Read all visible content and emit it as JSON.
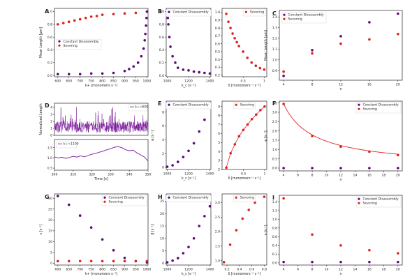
{
  "chart_data": [
    {
      "id": "A",
      "letter": "A",
      "type": "scatter",
      "xlabel": "k+ [monomers s⁻¹]",
      "ylabel": "Mean Length [μm]",
      "xlim": [
        585,
        1005
      ],
      "ylim": [
        -0.02,
        1.05
      ],
      "xticks": [
        600,
        650,
        700,
        750,
        800,
        850,
        900,
        950,
        1000
      ],
      "yticks": [
        0.0,
        0.2,
        0.4,
        0.6,
        0.8,
        1.0
      ],
      "ytick_labels": [
        "0.0",
        "0.2",
        "0.4",
        "0.6",
        "0.8",
        "1.0"
      ],
      "legend_pos": "center-left",
      "series": [
        {
          "name": "Constant Disassembly",
          "color": "#5b0a78",
          "x": [
            600,
            650,
            700,
            750,
            800,
            850,
            900,
            920,
            940,
            960,
            975,
            985,
            990,
            993,
            996,
            998,
            1000
          ],
          "y": [
            0.02,
            0.02,
            0.02,
            0.03,
            0.03,
            0.04,
            0.07,
            0.1,
            0.14,
            0.2,
            0.3,
            0.42,
            0.55,
            0.65,
            0.78,
            0.9,
            1.0
          ]
        },
        {
          "name": "Severing",
          "color": "#e02020",
          "x": [
            600,
            625,
            650,
            675,
            700,
            725,
            750,
            775,
            800,
            850,
            900,
            950
          ],
          "y": [
            0.8,
            0.82,
            0.84,
            0.86,
            0.88,
            0.9,
            0.92,
            0.93,
            0.95,
            0.96,
            0.97,
            0.98
          ]
        }
      ]
    },
    {
      "id": "B1",
      "letter": "B",
      "type": "scatter",
      "xlabel": "k_c [s⁻¹]",
      "ylabel": "",
      "xlim": [
        990,
        1410
      ],
      "ylim": [
        -0.02,
        1.05
      ],
      "xticks": [
        1000,
        1200,
        1400
      ],
      "yticks": [
        0.0,
        0.2,
        0.4,
        0.6,
        0.8,
        1.0
      ],
      "ytick_labels": [
        "0.0",
        "0.2",
        "0.4",
        "0.6",
        "0.8",
        "1.0"
      ],
      "legend_pos": "top",
      "series": [
        {
          "name": "Constant Disassembly",
          "color": "#5b0a78",
          "x": [
            1000,
            1005,
            1010,
            1020,
            1030,
            1050,
            1075,
            1100,
            1150,
            1200,
            1250,
            1300,
            1350,
            1400
          ],
          "y": [
            0.98,
            0.9,
            0.8,
            0.6,
            0.45,
            0.3,
            0.2,
            0.12,
            0.09,
            0.08,
            0.06,
            0.05,
            0.04,
            0.03
          ]
        }
      ]
    },
    {
      "id": "B2",
      "letter": "",
      "type": "scatter",
      "xlabel": "δ [monomers⁻¹ s⁻¹]",
      "ylabel": "",
      "xlim": [
        0.0,
        1.06
      ],
      "ylim": [
        0.18,
        1.05
      ],
      "xticks": [
        0.5,
        1.0
      ],
      "yticks": [
        0.2,
        0.3,
        0.4,
        0.5,
        0.6,
        0.7,
        0.8,
        0.9,
        1.0
      ],
      "ytick_labels": [
        "0.2",
        "0.3",
        "0.4",
        "0.5",
        "0.6",
        "0.7",
        "0.8",
        "0.9",
        "1.0"
      ],
      "legend_pos": "top-right",
      "series": [
        {
          "name": "Severing",
          "color": "#e02020",
          "x": [
            0.1,
            0.15,
            0.2,
            0.25,
            0.3,
            0.35,
            0.4,
            0.5,
            0.6,
            0.7,
            0.8,
            0.9,
            1.0
          ],
          "y": [
            0.98,
            0.88,
            0.8,
            0.73,
            0.67,
            0.62,
            0.57,
            0.5,
            0.42,
            0.36,
            0.32,
            0.29,
            0.27
          ]
        }
      ]
    },
    {
      "id": "C",
      "letter": "C",
      "type": "scatter",
      "xlabel": "n",
      "ylabel": "Mean Length [μm]",
      "xlim": [
        3.4,
        20.6
      ],
      "ylim": [
        0.81,
        1.46
      ],
      "xticks": [
        4,
        8,
        12,
        16,
        20
      ],
      "yticks": [
        0.9,
        1.0,
        1.1,
        1.2,
        1.3,
        1.4
      ],
      "ytick_labels": [
        "0.9",
        "1.0",
        "1.1",
        "1.2",
        "1.3",
        "1.4"
      ],
      "legend_pos": "top-left",
      "series": [
        {
          "name": "Constant Disassembly",
          "color": "#5b0a78",
          "x": [
            4,
            8,
            12,
            16,
            20
          ],
          "y": [
            0.85,
            1.09,
            1.22,
            1.35,
            1.43
          ]
        },
        {
          "name": "Severing",
          "color": "#e02020",
          "x": [
            4,
            8,
            12,
            16,
            20
          ],
          "y": [
            0.89,
            1.06,
            1.15,
            1.19,
            1.24
          ]
        }
      ]
    },
    {
      "id": "D1",
      "letter": "D",
      "type": "line",
      "xlabel": "",
      "ylabel": "Normalized Length",
      "xlim": [
        300,
        350
      ],
      "ylim": [
        0,
        4.6
      ],
      "xticks": [],
      "yticks": [
        0,
        1,
        2,
        3,
        4
      ],
      "ytick_labels": [
        "0",
        "1",
        "2",
        "3",
        "4"
      ],
      "legend_pos": "top-right",
      "series": [
        {
          "name": "k+=600",
          "color": "#7a1a9a",
          "seed": 7,
          "noisy": true,
          "x": [],
          "y": []
        }
      ]
    },
    {
      "id": "D2",
      "letter": "",
      "type": "line",
      "xlabel": "Time [s]",
      "ylabel": "",
      "xlim": [
        300,
        350
      ],
      "ylim": [
        0.4,
        1.9
      ],
      "xticks": [
        300,
        310,
        320,
        330,
        340,
        350
      ],
      "yticks": [
        0.5,
        1.0,
        1.5
      ],
      "ytick_labels": [
        "0.5",
        "1.0",
        "1.5"
      ],
      "legend_pos": "top-left",
      "series": [
        {
          "name": "k+=1100",
          "color": "#7a1a9a",
          "x": [
            300,
            302,
            304,
            306,
            308,
            310,
            312,
            314,
            316,
            318,
            320,
            322,
            324,
            326,
            328,
            330,
            332,
            334,
            336,
            338,
            340,
            342,
            344,
            346,
            348,
            350
          ],
          "y": [
            1.05,
            1.0,
            1.03,
            0.98,
            1.02,
            1.08,
            1.04,
            1.1,
            1.05,
            1.12,
            1.18,
            1.22,
            1.28,
            1.33,
            1.4,
            1.45,
            1.52,
            1.55,
            1.5,
            1.4,
            1.35,
            1.38,
            1.25,
            1.15,
            1.05,
            0.85
          ]
        }
      ]
    },
    {
      "id": "E1",
      "letter": "E",
      "type": "scatter",
      "xlabel": "k_c [s⁻¹]",
      "ylabel": "φ [s⁻¹]",
      "xlim": [
        990,
        1410
      ],
      "ylim": [
        -0.3,
        9.6
      ],
      "xticks": [
        1000,
        1200,
        1400
      ],
      "yticks": [
        0,
        2,
        4,
        6,
        8
      ],
      "ytick_labels": [
        "0",
        "2",
        "4",
        "6",
        "8"
      ],
      "legend_pos": "top",
      "series": [
        {
          "name": "Constant Disassembly",
          "color": "#5b0a78",
          "x": [
            1000,
            1050,
            1100,
            1150,
            1200,
            1250,
            1300,
            1350,
            1400
          ],
          "y": [
            0.1,
            0.3,
            0.8,
            1.5,
            2.4,
            3.5,
            5.2,
            6.9,
            9.0
          ]
        }
      ]
    },
    {
      "id": "E2",
      "letter": "",
      "type": "scatter",
      "xlabel": "δ [monomers⁻¹ s⁻¹]",
      "ylabel": "",
      "xlim": [
        0.0,
        1.05
      ],
      "ylim": [
        2,
        9.6
      ],
      "xticks": [
        0.5,
        1.0
      ],
      "yticks": [
        2,
        3,
        4,
        5,
        6,
        7,
        8,
        9
      ],
      "ytick_labels": [
        "2",
        "3",
        "4",
        "5",
        "6",
        "7",
        "8",
        "9"
      ],
      "legend_pos": "top",
      "series": [
        {
          "name": "Severing",
          "color": "#e02020",
          "line": true,
          "x": [
            0.1,
            0.2,
            0.3,
            0.4,
            0.5,
            0.6,
            0.7,
            0.8,
            0.9,
            1.0
          ],
          "y": [
            2.2,
            3.8,
            4.8,
            5.7,
            6.4,
            7.0,
            7.6,
            8.1,
            8.6,
            9.0
          ]
        }
      ]
    },
    {
      "id": "F",
      "letter": "F",
      "type": "scatter",
      "xlabel": "n",
      "ylabel": "φ [s⁻¹]",
      "xlim": [
        3.4,
        20.6
      ],
      "ylim": [
        -0.15,
        3.6
      ],
      "xticks": [
        4,
        6,
        8,
        10,
        12,
        14,
        16,
        18,
        20
      ],
      "yticks": [
        0.0,
        0.5,
        1.0,
        1.5,
        2.0,
        2.5,
        3.0,
        3.5
      ],
      "ytick_labels": [
        "0.0",
        "0.5",
        "1.0",
        "1.5",
        "2.0",
        "2.5",
        "3.0",
        "3.5"
      ],
      "legend_pos": "top-right",
      "series": [
        {
          "name": "Constant Disassembly",
          "color": "#5b0a78",
          "x": [
            4,
            8,
            12,
            16,
            20
          ],
          "y": [
            0.0,
            0.0,
            0.0,
            0.0,
            0.0
          ]
        },
        {
          "name": "Severing",
          "color": "#e02020",
          "fit": "3.45*(4/n)^0.95",
          "x": [
            4,
            8,
            12,
            16,
            20
          ],
          "y": [
            3.45,
            1.72,
            1.15,
            0.88,
            0.7
          ]
        }
      ]
    },
    {
      "id": "G",
      "letter": "G",
      "type": "scatter",
      "xlabel": "k+ [monomers s⁻¹]",
      "ylabel": "ε [s⁻¹]",
      "xlim": [
        585,
        1005
      ],
      "ylim": [
        -0.8,
        32
      ],
      "xticks": [
        600,
        650,
        700,
        750,
        800,
        850,
        900,
        950,
        1000
      ],
      "yticks": [
        0,
        5,
        10,
        15,
        20,
        25,
        30
      ],
      "ytick_labels": [
        "0",
        "5",
        "10",
        "15",
        "20",
        "25",
        "30"
      ],
      "legend_pos": "top-right",
      "series": [
        {
          "name": "Constant Disassembly",
          "color": "#5b0a78",
          "x": [
            600,
            650,
            700,
            750,
            800,
            850,
            900,
            950,
            1000
          ],
          "y": [
            31,
            27,
            22,
            16.5,
            11,
            6,
            2.5,
            1.0,
            0.4
          ]
        },
        {
          "name": "Severing",
          "color": "#e02020",
          "x": [
            600,
            650,
            700,
            750,
            800,
            850,
            900,
            950,
            1000
          ],
          "y": [
            1.0,
            1.0,
            1.0,
            1.0,
            1.0,
            1.0,
            1.0,
            1.0,
            1.0
          ]
        }
      ]
    },
    {
      "id": "H1",
      "letter": "H",
      "type": "scatter",
      "xlabel": "k_c [s⁻¹]",
      "ylabel": "β [s⁻¹]",
      "xlim": [
        990,
        1410
      ],
      "ylim": [
        -0.8,
        28
      ],
      "xticks": [
        1000,
        1200,
        1400
      ],
      "yticks": [
        0,
        5,
        10,
        15,
        20,
        25
      ],
      "ytick_labels": [
        "0",
        "5",
        "10",
        "15",
        "20",
        "25"
      ],
      "legend_pos": "top",
      "series": [
        {
          "name": "Constant Disassembly",
          "color": "#5b0a78",
          "x": [
            1000,
            1050,
            1100,
            1150,
            1200,
            1250,
            1300,
            1350,
            1400
          ],
          "y": [
            0.3,
            1.0,
            2.0,
            4.0,
            6.5,
            10.0,
            15.0,
            19.0,
            23.0
          ]
        }
      ]
    },
    {
      "id": "H2",
      "letter": "",
      "type": "scatter",
      "xlabel": "δ [monomers⁻¹ s⁻¹]",
      "ylabel": "",
      "xlim": [
        0.12,
        0.84
      ],
      "ylim": [
        0.85,
        3.3
      ],
      "xticks": [
        0.2,
        0.4,
        0.6,
        0.8
      ],
      "yticks": [
        1.0,
        1.5,
        2.0,
        2.5,
        3.0
      ],
      "ytick_labels": [
        "1.0",
        "1.5",
        "2.0",
        "2.5",
        "3.0"
      ],
      "legend_pos": "top",
      "series": [
        {
          "name": "Severing",
          "color": "#e02020",
          "x": [
            0.15,
            0.25,
            0.35,
            0.45,
            0.55,
            0.65,
            0.8
          ],
          "y": [
            0.95,
            1.55,
            2.05,
            2.45,
            2.75,
            3.0,
            3.2
          ]
        }
      ]
    },
    {
      "id": "I",
      "letter": "I",
      "type": "scatter",
      "xlabel": "n",
      "ylabel": "κ [s⁻¹]",
      "xlim": [
        3.4,
        20.6
      ],
      "ylim": [
        -0.05,
        1.55
      ],
      "xticks": [
        4,
        6,
        8,
        10,
        12,
        14,
        16,
        18,
        20
      ],
      "yticks": [
        0.0,
        0.2,
        0.4,
        0.6,
        0.8,
        1.0,
        1.2,
        1.4
      ],
      "ytick_labels": [
        "0.0",
        "0.2",
        "0.4",
        "0.6",
        "0.8",
        "1.0",
        "1.2",
        "1.4"
      ],
      "legend_pos": "top-right",
      "series": [
        {
          "name": "Constant Disassembly",
          "color": "#5b0a78",
          "x": [
            4,
            8,
            12,
            16,
            20
          ],
          "y": [
            0.02,
            0.02,
            0.02,
            0.02,
            0.02
          ]
        },
        {
          "name": "Severing",
          "color": "#e02020",
          "x": [
            4,
            8,
            12,
            16,
            20
          ],
          "y": [
            1.48,
            0.65,
            0.4,
            0.29,
            0.22
          ]
        }
      ]
    }
  ]
}
